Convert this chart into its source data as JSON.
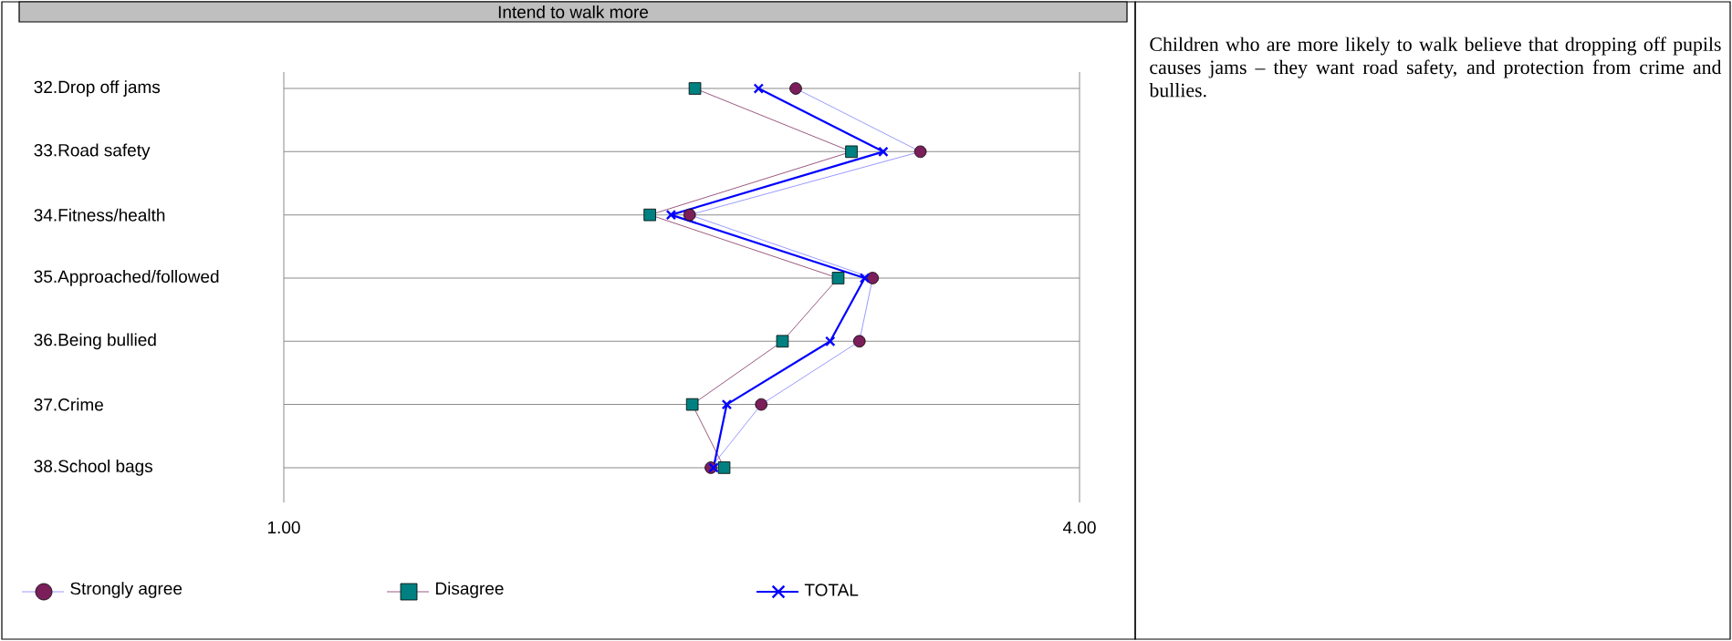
{
  "chart_data": {
    "type": "line",
    "title": "Intend to walk more",
    "categories": [
      "32.Drop off jams",
      "33.Road safety",
      "34.Fitness/health",
      "35.Approached/followed",
      "36.Being bullied",
      "37.Crime",
      "38.School bags"
    ],
    "series": [
      {
        "name": "Strongly agree",
        "color": "#7b1f5a",
        "marker": "circle",
        "values": [
          2.93,
          3.4,
          2.53,
          3.22,
          3.17,
          2.8,
          2.61
        ]
      },
      {
        "name": "Disagree",
        "color": "#008080",
        "marker": "square",
        "values": [
          2.55,
          3.14,
          2.38,
          3.09,
          2.88,
          2.54,
          2.66
        ]
      },
      {
        "name": "TOTAL",
        "color": "#0000ff",
        "marker": "cross",
        "values": [
          2.79,
          3.26,
          2.46,
          3.19,
          3.06,
          2.67,
          2.62
        ]
      }
    ],
    "orientation": "horizontal",
    "xlim": [
      1,
      4
    ],
    "xticks": [
      {
        "value": 1,
        "label": "1.00"
      },
      {
        "value": 4,
        "label": "4.00"
      }
    ],
    "grid": true,
    "legend": "bottom",
    "annotations": [
      "Children who are more likely to walk believe that dropping off pupils causes jams – they want road safety, and protection from crime and bullies."
    ]
  }
}
